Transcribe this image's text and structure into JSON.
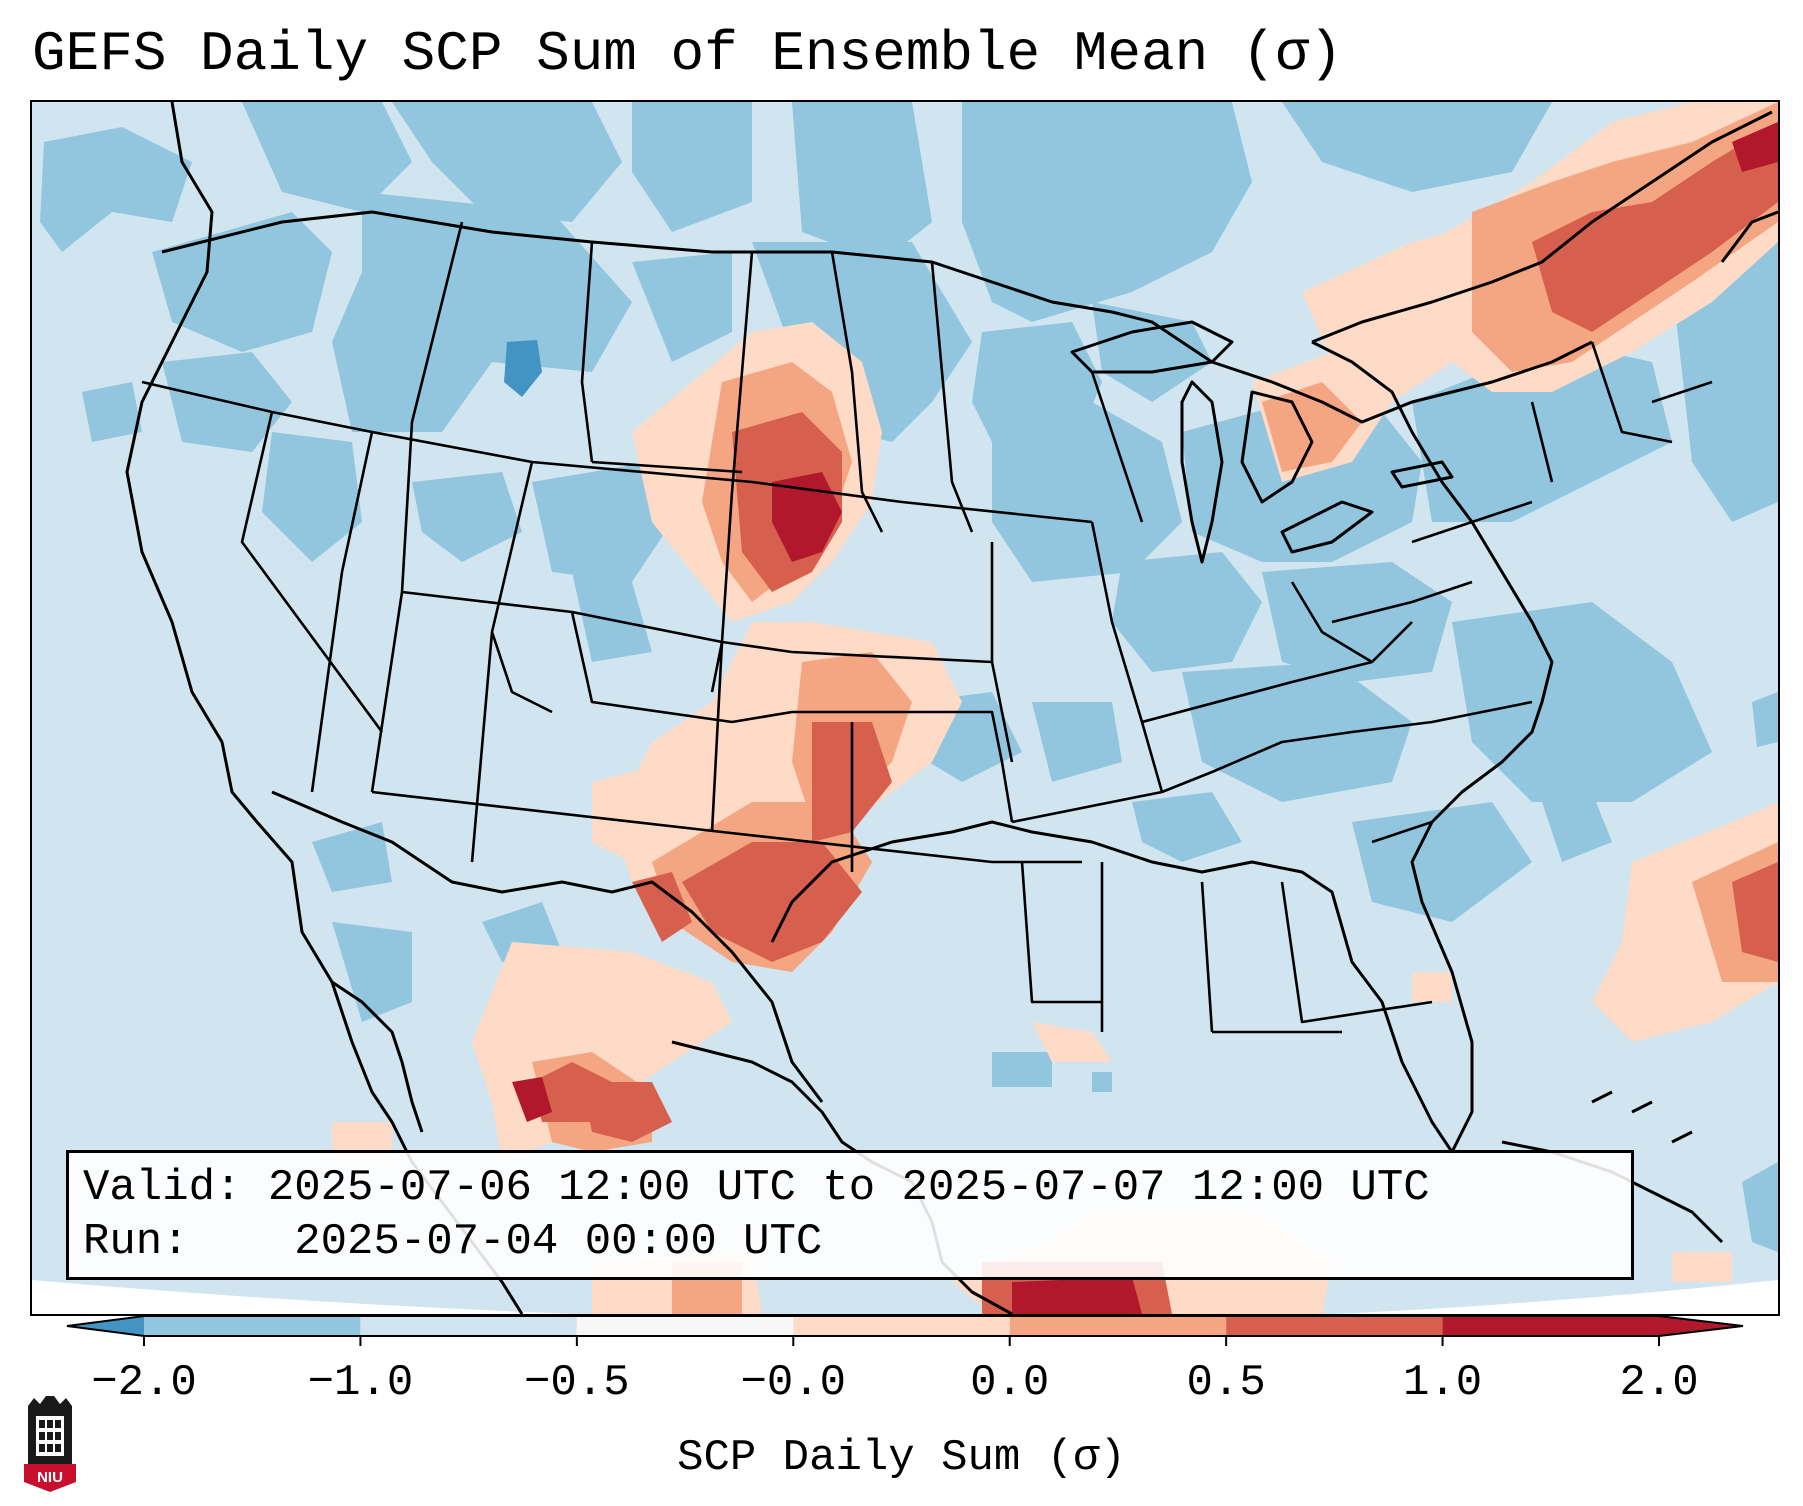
{
  "title": "GEFS Daily SCP Sum of Ensemble Mean (σ)",
  "info": {
    "valid_label": "Valid:",
    "valid_range": "2025-07-06 12:00 UTC to 2025-07-07 12:00 UTC",
    "run_label": "Run:",
    "run_time": "2025-07-04 00:00 UTC"
  },
  "colorbar": {
    "label": "SCP Daily Sum (σ)",
    "ticks": [
      "−2.0",
      "−1.0",
      "−0.5",
      "−0.0",
      "0.0",
      "0.5",
      "1.0",
      "2.0"
    ],
    "colors": [
      "#4393c3",
      "#92c5de",
      "#d1e5f0",
      "#f7f7f7",
      "#fddbc7",
      "#f4a582",
      "#d6604d",
      "#b2182b"
    ],
    "extend": "both"
  },
  "logo": {
    "text": "NIU",
    "color": "#c8102e"
  },
  "map": {
    "region": "Contiguous United States",
    "ocean_color": "#ffffff",
    "background_class": "#d1e5f0"
  }
}
